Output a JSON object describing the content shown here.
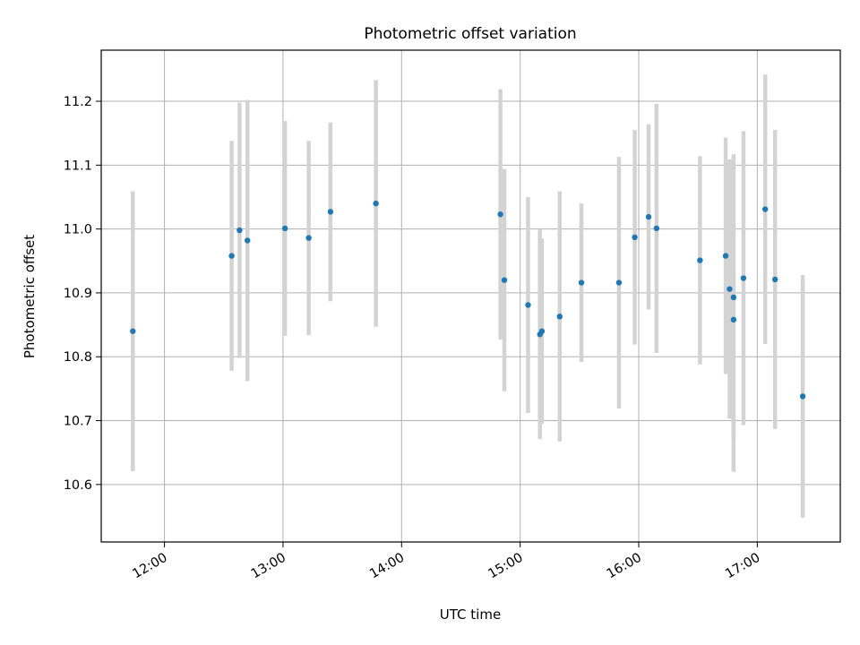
{
  "chart_data": {
    "type": "scatter",
    "title": "Photometric offset variation",
    "xlabel": "UTC time",
    "ylabel": "Photometric offset",
    "x_tick_labels": [
      "12:00",
      "13:00",
      "14:00",
      "15:00",
      "16:00",
      "17:00"
    ],
    "y_tick_labels": [
      "10.6",
      "10.7",
      "10.8",
      "10.9",
      "11.0",
      "11.1",
      "11.2"
    ],
    "xlim": [
      "11:28",
      "17:42"
    ],
    "ylim": [
      10.51,
      11.28
    ],
    "grid": true,
    "colors": {
      "point": "#1f77b4",
      "errorbar": "#d3d3d3",
      "grid": "#b0b0b0"
    },
    "points": [
      {
        "x": "11:44",
        "y": 10.84,
        "err": 0.219
      },
      {
        "x": "12:34",
        "y": 10.958,
        "err": 0.18
      },
      {
        "x": "12:38",
        "y": 10.998,
        "err": 0.2
      },
      {
        "x": "12:42",
        "y": 10.982,
        "err": 0.22
      },
      {
        "x": "13:01",
        "y": 11.001,
        "err": 0.168
      },
      {
        "x": "13:13",
        "y": 10.986,
        "err": 0.152
      },
      {
        "x": "13:24",
        "y": 11.027,
        "err": 0.14
      },
      {
        "x": "13:47",
        "y": 11.04,
        "err": 0.193
      },
      {
        "x": "14:50",
        "y": 11.023,
        "err": 0.196
      },
      {
        "x": "14:52",
        "y": 10.92,
        "err": 0.174
      },
      {
        "x": "15:04",
        "y": 10.881,
        "err": 0.169
      },
      {
        "x": "15:10",
        "y": 10.835,
        "err": 0.164
      },
      {
        "x": "15:11",
        "y": 10.84,
        "err": 0.145
      },
      {
        "x": "15:20",
        "y": 10.863,
        "err": 0.196
      },
      {
        "x": "15:31",
        "y": 10.916,
        "err": 0.124
      },
      {
        "x": "15:50",
        "y": 10.916,
        "err": 0.197
      },
      {
        "x": "15:58",
        "y": 10.987,
        "err": 0.168
      },
      {
        "x": "16:05",
        "y": 11.019,
        "err": 0.145
      },
      {
        "x": "16:09",
        "y": 11.001,
        "err": 0.195
      },
      {
        "x": "16:31",
        "y": 10.951,
        "err": 0.163
      },
      {
        "x": "16:44",
        "y": 10.958,
        "err": 0.185
      },
      {
        "x": "16:46",
        "y": 10.906,
        "err": 0.203
      },
      {
        "x": "16:48",
        "y": 10.858,
        "err": 0.238
      },
      {
        "x": "16:48",
        "y": 10.893,
        "err": 0.224
      },
      {
        "x": "16:53",
        "y": 10.923,
        "err": 0.23
      },
      {
        "x": "17:04",
        "y": 11.031,
        "err": 0.211
      },
      {
        "x": "17:09",
        "y": 10.921,
        "err": 0.234
      },
      {
        "x": "17:23",
        "y": 10.738,
        "err": 0.19
      }
    ]
  }
}
